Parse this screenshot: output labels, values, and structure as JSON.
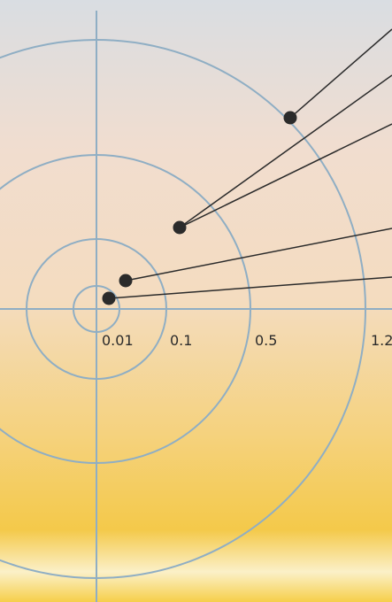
{
  "rings": [
    {
      "label": "0.01"
    },
    {
      "label": "0.1"
    },
    {
      "label": "0.5"
    },
    {
      "label": "1.2"
    }
  ]
}
